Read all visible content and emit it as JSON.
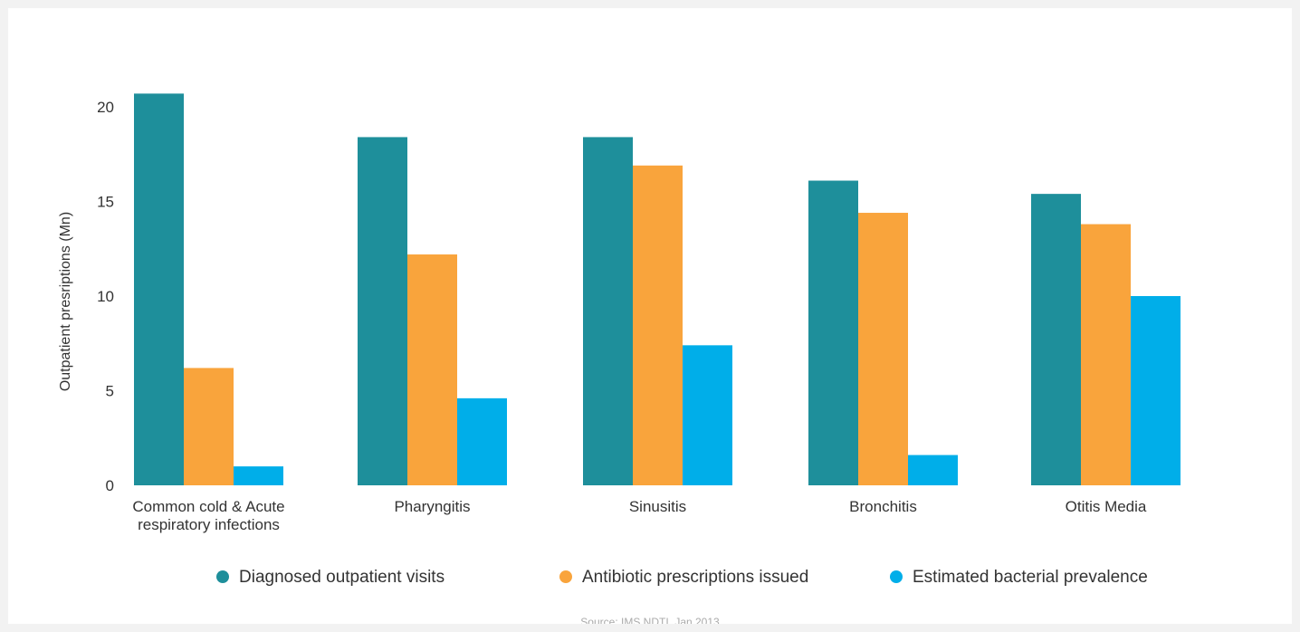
{
  "chart_data": {
    "type": "bar",
    "ylabel": "Outpatient presriptions (Mn)",
    "xlabel": "",
    "ylim": [
      0,
      22
    ],
    "yticks": [
      0,
      5,
      10,
      15,
      20
    ],
    "categories": [
      [
        "Common cold & Acute",
        "respiratory infections"
      ],
      [
        "Pharyngitis"
      ],
      [
        "Sinusitis"
      ],
      [
        "Bronchitis"
      ],
      [
        "Otitis Media"
      ]
    ],
    "series": [
      {
        "name": "Diagnosed outpatient visits",
        "color": "#1e8f9b",
        "values": [
          20.7,
          18.4,
          18.4,
          16.1,
          15.4
        ]
      },
      {
        "name": "Antibiotic prescriptions issued",
        "color": "#f9a43c",
        "values": [
          6.2,
          12.2,
          16.9,
          14.4,
          13.8
        ]
      },
      {
        "name": "Estimated bacterial prevalence",
        "color": "#00aee9",
        "values": [
          1.0,
          4.6,
          7.4,
          1.6,
          10.0
        ]
      }
    ],
    "legend_position": "bottom",
    "grid": false,
    "source": "Source: IMS NDTI, Jan 2013"
  }
}
